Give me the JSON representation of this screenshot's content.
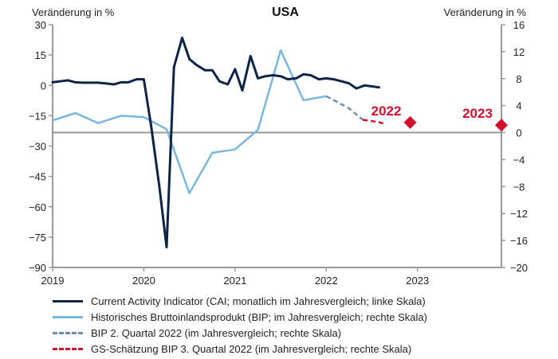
{
  "chart_data": {
    "type": "line",
    "title": "USA",
    "ylabel_left": "Veränderung in %",
    "ylabel_right": "Veränderung in %",
    "x_ticks": [
      "2019",
      "2020",
      "2021",
      "2022",
      "2023"
    ],
    "xlim": [
      2019.0,
      2023.92
    ],
    "ylim_left": [
      -90,
      30
    ],
    "yticks_left": [
      "30",
      "15",
      "0",
      "−15",
      "−30",
      "−45",
      "−60",
      "−75",
      "−90"
    ],
    "ylim_right": [
      -20,
      16
    ],
    "yticks_right": [
      "16",
      "12",
      "8",
      "4",
      "0",
      "−4",
      "−8",
      "−12",
      "−16",
      "−20"
    ],
    "series": [
      {
        "name": "Current Activity Indicator (CAI; monatlich im Jahresvergleich; linke Skala)",
        "axis": "left",
        "style": "solid",
        "color": "#0d2447",
        "x": [
          2019.0,
          2019.08,
          2019.17,
          2019.25,
          2019.33,
          2019.42,
          2019.5,
          2019.58,
          2019.67,
          2019.75,
          2019.83,
          2019.92,
          2020.0,
          2020.08,
          2020.17,
          2020.25,
          2020.33,
          2020.42,
          2020.5,
          2020.58,
          2020.67,
          2020.75,
          2020.83,
          2020.92,
          2021.0,
          2021.08,
          2021.17,
          2021.25,
          2021.33,
          2021.42,
          2021.5,
          2021.58,
          2021.67,
          2021.75,
          2021.83,
          2021.92,
          2022.0,
          2022.08,
          2022.17,
          2022.25,
          2022.33,
          2022.42,
          2022.5,
          2022.58
        ],
        "y": [
          1.5,
          2.0,
          2.5,
          1.5,
          1.3,
          1.3,
          1.3,
          1.0,
          0.5,
          1.5,
          1.5,
          3.0,
          3.0,
          -20.0,
          -50.0,
          -80.0,
          9.0,
          23.5,
          13.0,
          10.0,
          7.5,
          7.5,
          2.0,
          0.5,
          8.0,
          -2.5,
          14.5,
          3.5,
          4.5,
          5.0,
          4.5,
          3.0,
          3.5,
          5.5,
          5.0,
          3.0,
          3.5,
          3.0,
          2.0,
          1.0,
          -1.5,
          0.0,
          -0.5,
          -1.0
        ]
      },
      {
        "name": "Historisches Bruttoinlandsprodukt (BIP; im Jahresvergleich; rechte Skala)",
        "axis": "right",
        "style": "solid",
        "color": "#79b6dd",
        "x": [
          2019.0,
          2019.25,
          2019.5,
          2019.75,
          2020.0,
          2020.25,
          2020.5,
          2020.75,
          2021.0,
          2021.25,
          2021.5,
          2021.75,
          2022.0
        ],
        "y": [
          1.8,
          2.9,
          1.4,
          2.5,
          2.3,
          0.5,
          -9.0,
          -3.0,
          -2.5,
          0.4,
          12.2,
          4.8,
          5.4
        ]
      },
      {
        "name": "BIP 2. Quartal 2022 (im Jahresvergleich; rechte Skala)",
        "axis": "right",
        "style": "dashed",
        "color": "#6e8fb5",
        "x": [
          2022.0,
          2022.25,
          2022.4
        ],
        "y": [
          5.4,
          3.6,
          1.9
        ]
      },
      {
        "name": "GS-Schätzung BIP 3. Quartal 2022 (im Jahresvergleich; rechte Skala)",
        "axis": "right",
        "style": "dashed",
        "color": "#d40f2e",
        "x": [
          2022.4,
          2022.55,
          2022.65
        ],
        "y": [
          1.9,
          1.6,
          1.3
        ]
      }
    ],
    "forecasts": [
      {
        "label": "2022",
        "axis": "right",
        "x": 2022.92,
        "y": 1.5,
        "color": "#d40f2e"
      },
      {
        "label": "2023",
        "axis": "right",
        "x": 2023.92,
        "y": 1.1,
        "color": "#d40f2e"
      }
    ],
    "reference_line": {
      "axis": "right",
      "y": 0,
      "color": "#999999"
    },
    "grid": false
  },
  "legend": [
    {
      "label": "Current Activity Indicator (CAI; monatlich im Jahresvergleich; linke Skala)",
      "color": "#0d2447",
      "style": "solid"
    },
    {
      "label": "Historisches Bruttoinlandsprodukt (BIP; im Jahresvergleich; rechte Skala)",
      "color": "#79b6dd",
      "style": "solid"
    },
    {
      "label": "BIP 2. Quartal 2022 (im Jahresvergleich; rechte Skala)",
      "color": "#6e8fb5",
      "style": "dashed"
    },
    {
      "label": "GS-Schätzung BIP 3. Quartal 2022 (im Jahresvergleich; rechte Skala)",
      "color": "#d40f2e",
      "style": "dashed"
    }
  ]
}
